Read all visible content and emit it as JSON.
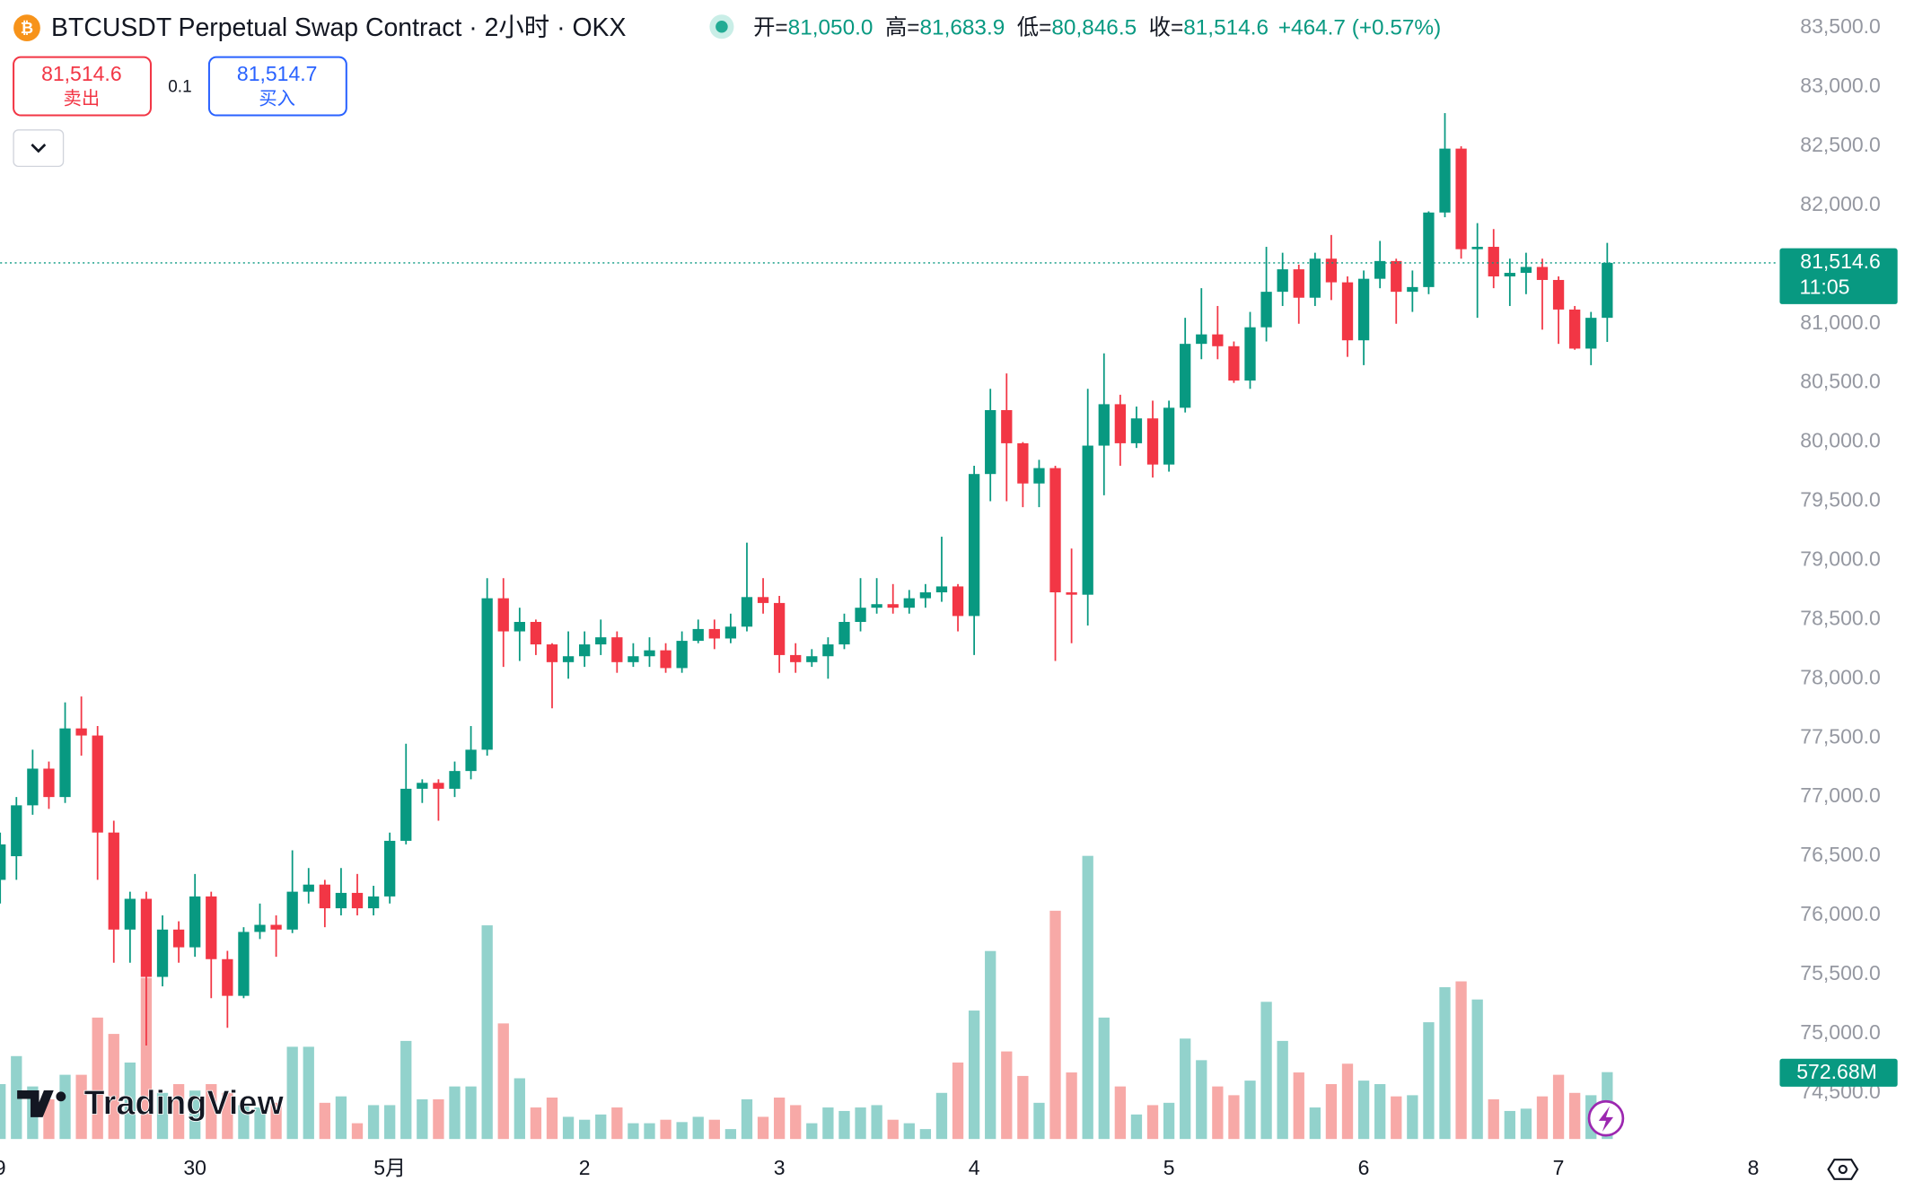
{
  "chart_data": {
    "type": "candlestick",
    "title": "BTCUSDT Perpetual Swap Contract · 2小时 · OKX",
    "ohlc": [
      {
        "label": "开=",
        "value": "81,050.0"
      },
      {
        "label": "高=",
        "value": "81,683.9"
      },
      {
        "label": "低=",
        "value": "80,846.5"
      },
      {
        "label": "收=",
        "value": "81,514.6"
      }
    ],
    "change": "+464.7 (+0.57%)",
    "sell": {
      "price": "81,514.6",
      "label": "卖出"
    },
    "quantity": "0.1",
    "buy": {
      "price": "81,514.7",
      "label": "买入"
    },
    "logo": "TradingView",
    "up_color": "#089981",
    "down_color": "#f23645",
    "up_volume_color": "#92d2cc",
    "down_volume_color": "#f7a9a7",
    "grid": false,
    "x": [
      0,
      1,
      2,
      3,
      4,
      5,
      6,
      7,
      8,
      9,
      10,
      11,
      12,
      13,
      14,
      15,
      16,
      17,
      18,
      19,
      20,
      21,
      22,
      23,
      24,
      25,
      26,
      27,
      28,
      29,
      30,
      31,
      32,
      33,
      34,
      35,
      36,
      37,
      38,
      39,
      40,
      41,
      42,
      43,
      44,
      45,
      46,
      47,
      48,
      49,
      50,
      51,
      52,
      53,
      54,
      55,
      56,
      57,
      58,
      59,
      60,
      61,
      62,
      63,
      64,
      65,
      66,
      67,
      68,
      69,
      70,
      71,
      72,
      73,
      74,
      75,
      76,
      77,
      78,
      79,
      80,
      81,
      82,
      83,
      84,
      85,
      86,
      87,
      88,
      89,
      90,
      91,
      92,
      93,
      94,
      95,
      96,
      97,
      98,
      99
    ],
    "open": [
      76300,
      76500,
      76930,
      77240,
      77000,
      77580,
      77520,
      76700,
      75880,
      76140,
      75480,
      75880,
      75730,
      76160,
      75630,
      75320,
      75860,
      75920,
      75880,
      76200,
      76260,
      76060,
      76190,
      76060,
      76160,
      76630,
      77070,
      77120,
      77070,
      77220,
      77400,
      78680,
      78400,
      78480,
      78290,
      78140,
      78190,
      78290,
      78350,
      78140,
      78190,
      78240,
      78090,
      78320,
      78420,
      78340,
      78440,
      78690,
      78640,
      78200,
      78140,
      78190,
      78290,
      78480,
      78600,
      78630,
      78600,
      78680,
      78730,
      78780,
      78530,
      79730,
      80270,
      79990,
      79650,
      79780,
      78730,
      78710,
      79970,
      80320,
      79990,
      80200,
      79810,
      80290,
      80830,
      80910,
      80810,
      80520,
      80970,
      81270,
      81460,
      81220,
      81550,
      81350,
      80860,
      81380,
      81530,
      81270,
      81310,
      81940,
      82480,
      81630,
      81650,
      81400,
      81430,
      81480,
      81370,
      81120,
      80790,
      81050
    ],
    "high": [
      76700,
      77000,
      77400,
      77300,
      77800,
      77850,
      77600,
      76800,
      76200,
      76200,
      76000,
      75950,
      76350,
      76200,
      75700,
      75900,
      76100,
      76000,
      76550,
      76400,
      76300,
      76400,
      76350,
      76250,
      76700,
      77450,
      77150,
      77150,
      77300,
      77600,
      78850,
      78850,
      78600,
      78500,
      78300,
      78400,
      78400,
      78500,
      78400,
      78300,
      78350,
      78300,
      78400,
      78500,
      78500,
      78550,
      79150,
      78850,
      78700,
      78300,
      78250,
      78350,
      78550,
      78850,
      78850,
      78800,
      78750,
      78800,
      79200,
      78800,
      79800,
      80450,
      80580,
      80000,
      79850,
      79800,
      79100,
      80450,
      80750,
      80400,
      80300,
      80350,
      80350,
      81050,
      81300,
      81150,
      80850,
      81100,
      81650,
      81600,
      81500,
      81600,
      81750,
      81400,
      81450,
      81700,
      81550,
      81450,
      81950,
      82780,
      82500,
      81850,
      81800,
      81550,
      81600,
      81550,
      81400,
      81150,
      81100,
      81683.9
    ],
    "low": [
      76100,
      76300,
      76850,
      76900,
      76950,
      77350,
      76300,
      75600,
      75600,
      74900,
      75400,
      75600,
      75650,
      75300,
      75050,
      75300,
      75800,
      75650,
      75850,
      76100,
      75900,
      76000,
      76000,
      76000,
      76100,
      76600,
      76950,
      76800,
      77000,
      77150,
      77350,
      78100,
      78150,
      78200,
      77750,
      78000,
      78100,
      78200,
      78050,
      78100,
      78100,
      78050,
      78050,
      78300,
      78250,
      78300,
      78400,
      78550,
      78050,
      78050,
      78100,
      78000,
      78250,
      78400,
      78550,
      78550,
      78550,
      78600,
      78650,
      78400,
      78200,
      79500,
      79500,
      79450,
      79450,
      78150,
      78300,
      78450,
      79550,
      79800,
      79950,
      79700,
      79750,
      80250,
      80700,
      80700,
      80500,
      80450,
      80850,
      81150,
      81000,
      81150,
      81200,
      80720,
      80650,
      81300,
      81000,
      81100,
      81250,
      81900,
      81550,
      81050,
      81300,
      81150,
      81250,
      80950,
      80830,
      80780,
      80650,
      80846.5
    ],
    "close": [
      76600,
      76930,
      77240,
      77000,
      77580,
      77520,
      76700,
      75880,
      76140,
      75480,
      75880,
      75730,
      76160,
      75630,
      75320,
      75860,
      75920,
      75880,
      76200,
      76260,
      76060,
      76190,
      76060,
      76160,
      76630,
      77070,
      77120,
      77070,
      77220,
      77400,
      78680,
      78400,
      78480,
      78290,
      78140,
      78190,
      78290,
      78350,
      78140,
      78190,
      78240,
      78090,
      78320,
      78420,
      78340,
      78440,
      78690,
      78640,
      78200,
      78140,
      78190,
      78290,
      78480,
      78600,
      78630,
      78600,
      78680,
      78730,
      78780,
      78530,
      79730,
      80270,
      79990,
      79650,
      79780,
      78730,
      78710,
      79970,
      80320,
      79990,
      80200,
      79810,
      80290,
      80830,
      80910,
      80810,
      80520,
      80970,
      81270,
      81460,
      81220,
      81550,
      81350,
      80860,
      81380,
      81530,
      81270,
      81310,
      81940,
      82480,
      81630,
      81650,
      81400,
      81430,
      81480,
      81370,
      81120,
      80790,
      81050,
      81514.6
    ],
    "volume": {
      "values": [
        470,
        710,
        450,
        340,
        550,
        550,
        1040,
        900,
        655,
        1380,
        395,
        470,
        415,
        470,
        395,
        290,
        270,
        310,
        790,
        790,
        310,
        365,
        135,
        290,
        290,
        840,
        340,
        340,
        450,
        450,
        1830,
        990,
        520,
        270,
        355,
        190,
        165,
        210,
        270,
        135,
        135,
        165,
        145,
        190,
        165,
        85,
        340,
        190,
        355,
        290,
        135,
        270,
        240,
        270,
        290,
        165,
        135,
        85,
        395,
        655,
        1100,
        1610,
        750,
        540,
        310,
        1955,
        570,
        2425,
        1040,
        450,
        210,
        290,
        310,
        860,
        675,
        450,
        375,
        500,
        1175,
        840,
        570,
        270,
        470,
        645,
        500,
        470,
        365,
        375,
        1000,
        1300,
        1350,
        1195,
        340,
        240,
        260,
        365,
        550,
        395,
        375,
        572.68
      ],
      "last_label": "572.68M",
      "ylim": [
        0,
        2600
      ]
    },
    "current_price": {
      "value": 81514.6,
      "label": "81,514.6",
      "countdown": "11:05"
    },
    "xlim": [
      0,
      109.4
    ],
    "xticks": [
      {
        "value": 0,
        "label": "9"
      },
      {
        "value": 12,
        "label": "30"
      },
      {
        "value": 24,
        "label": "5月"
      },
      {
        "value": 36,
        "label": "2"
      },
      {
        "value": 48,
        "label": "3"
      },
      {
        "value": 60,
        "label": "4"
      },
      {
        "value": 72,
        "label": "5"
      },
      {
        "value": 84,
        "label": "6"
      },
      {
        "value": 96,
        "label": "7"
      },
      {
        "value": 108,
        "label": "8"
      }
    ],
    "ylim": [
      74500,
      83500
    ],
    "yticks": [
      {
        "value": 74500,
        "label": "74,500.0"
      },
      {
        "value": 75000,
        "label": "75,000.0"
      },
      {
        "value": 75500,
        "label": "75,500.0"
      },
      {
        "value": 76000,
        "label": "76,000.0"
      },
      {
        "value": 76500,
        "label": "76,500.0"
      },
      {
        "value": 77000,
        "label": "77,000.0"
      },
      {
        "value": 77500,
        "label": "77,500.0"
      },
      {
        "value": 78000,
        "label": "78,000.0"
      },
      {
        "value": 78500,
        "label": "78,500.0"
      },
      {
        "value": 79000,
        "label": "79,000.0"
      },
      {
        "value": 79500,
        "label": "79,500.0"
      },
      {
        "value": 80000,
        "label": "80,000.0"
      },
      {
        "value": 80500,
        "label": "80,500.0"
      },
      {
        "value": 81000,
        "label": "81,000.0"
      },
      {
        "value": 81500,
        "label": "81,500.0"
      },
      {
        "value": 82000,
        "label": "82,000.0"
      },
      {
        "value": 82500,
        "label": "82,500.0"
      },
      {
        "value": 83000,
        "label": "83,000.0"
      },
      {
        "value": 83500,
        "label": "83,500.0"
      }
    ]
  }
}
